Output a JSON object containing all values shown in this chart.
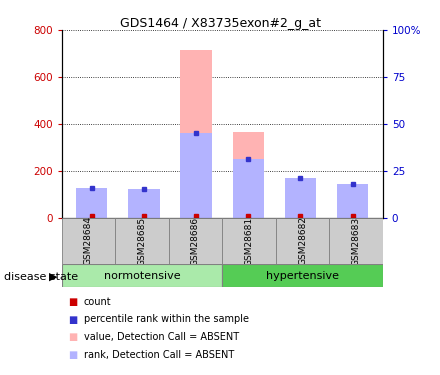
{
  "title": "GDS1464 / X83735exon#2_g_at",
  "samples": [
    "GSM28684",
    "GSM28685",
    "GSM28686",
    "GSM28681",
    "GSM28682",
    "GSM28683"
  ],
  "value_absent": [
    110,
    100,
    715,
    365,
    165,
    135
  ],
  "rank_absent_pct": [
    16,
    15,
    45,
    31,
    21,
    18
  ],
  "ylim_left": [
    0,
    800
  ],
  "ylim_right": [
    0,
    100
  ],
  "yticks_left": [
    0,
    200,
    400,
    600,
    800
  ],
  "yticks_right": [
    0,
    25,
    50,
    75,
    100
  ],
  "ytick_labels_right": [
    "0",
    "25",
    "50",
    "75",
    "100%"
  ],
  "color_value_absent": "#ffb3b3",
  "color_rank_absent": "#b3b3ff",
  "color_count": "#cc0000",
  "color_rank_dot": "#3333cc",
  "normotensive_color": "#aaeaaa",
  "hypertensive_color": "#55cc55",
  "label_box_color": "#cccccc",
  "legend_items": [
    {
      "label": "count",
      "color": "#cc0000"
    },
    {
      "label": "percentile rank within the sample",
      "color": "#3333cc"
    },
    {
      "label": "value, Detection Call = ABSENT",
      "color": "#ffb3b3"
    },
    {
      "label": "rank, Detection Call = ABSENT",
      "color": "#b3b3ff"
    }
  ]
}
